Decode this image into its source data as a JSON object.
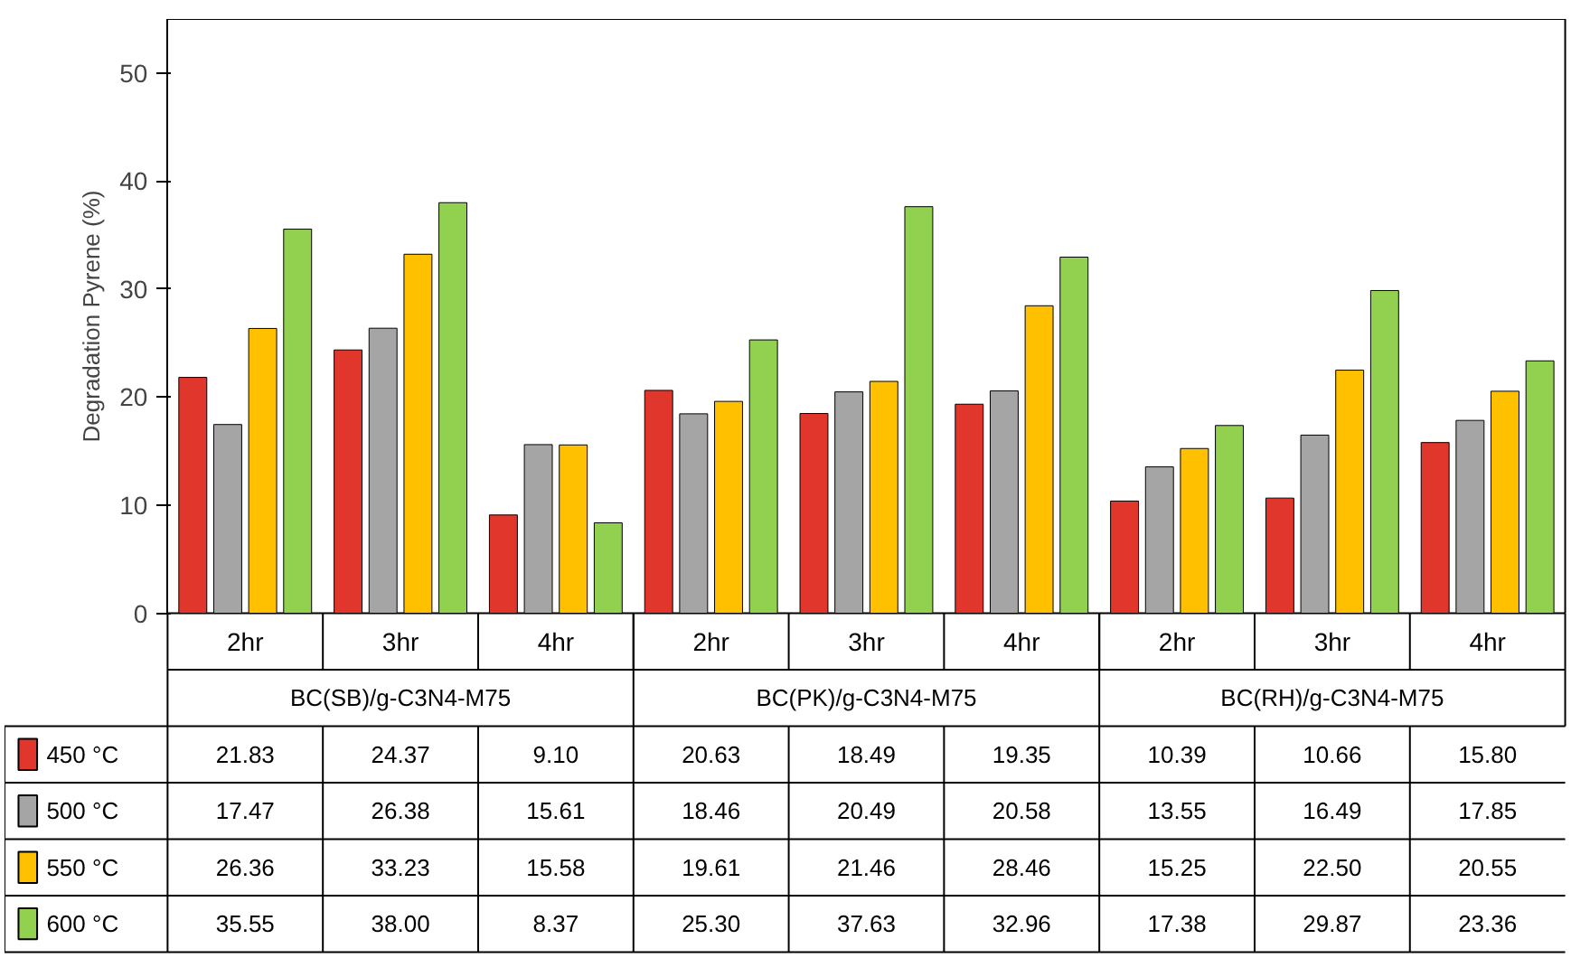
{
  "chart_data": {
    "type": "bar",
    "ylabel": "Degradation Pyrene (%)",
    "categories": [
      "2hr",
      "3hr",
      "4hr",
      "2hr",
      "3hr",
      "4hr",
      "2hr",
      "3hr",
      "4hr"
    ],
    "annotations": [
      "BC(SB)/g-C3N4-M75",
      "BC(PK)/g-C3N4-M75",
      "BC(RH)/g-C3N4-M75"
    ],
    "series": [
      {
        "name": "450 °C",
        "color": "#e0362c",
        "values": [
          21.83,
          24.37,
          9.1,
          20.63,
          18.49,
          19.35,
          10.39,
          10.66,
          15.8
        ],
        "value_labels": [
          "21.83",
          "24.37",
          "9.10",
          "20.63",
          "18.49",
          "19.35",
          "10.39",
          "10.66",
          "15.80"
        ]
      },
      {
        "name": "500 °C",
        "color": "#a5a5a5",
        "values": [
          17.47,
          26.38,
          15.61,
          18.46,
          20.49,
          20.58,
          13.55,
          16.49,
          17.85
        ],
        "value_labels": [
          "17.47",
          "26.38",
          "15.61",
          "18.46",
          "20.49",
          "20.58",
          "13.55",
          "16.49",
          "17.85"
        ]
      },
      {
        "name": "550 °C",
        "color": "#ffc000",
        "values": [
          26.36,
          33.23,
          15.58,
          19.61,
          21.46,
          28.46,
          15.25,
          22.5,
          20.55
        ],
        "value_labels": [
          "26.36",
          "33.23",
          "15.58",
          "19.61",
          "21.46",
          "28.46",
          "15.25",
          "22.50",
          "20.55"
        ]
      },
      {
        "name": "600 °C",
        "color": "#92d050",
        "values": [
          35.55,
          38.0,
          8.37,
          25.3,
          37.63,
          32.96,
          17.38,
          29.87,
          23.36
        ],
        "value_labels": [
          "35.55",
          "38.00",
          "8.37",
          "25.30",
          "37.63",
          "32.96",
          "17.38",
          "29.87",
          "23.36"
        ]
      }
    ],
    "ylim": [
      0,
      55
    ],
    "yticks": [
      0,
      10,
      20,
      30,
      40,
      50
    ],
    "grid": false,
    "legend": "bottom left"
  }
}
